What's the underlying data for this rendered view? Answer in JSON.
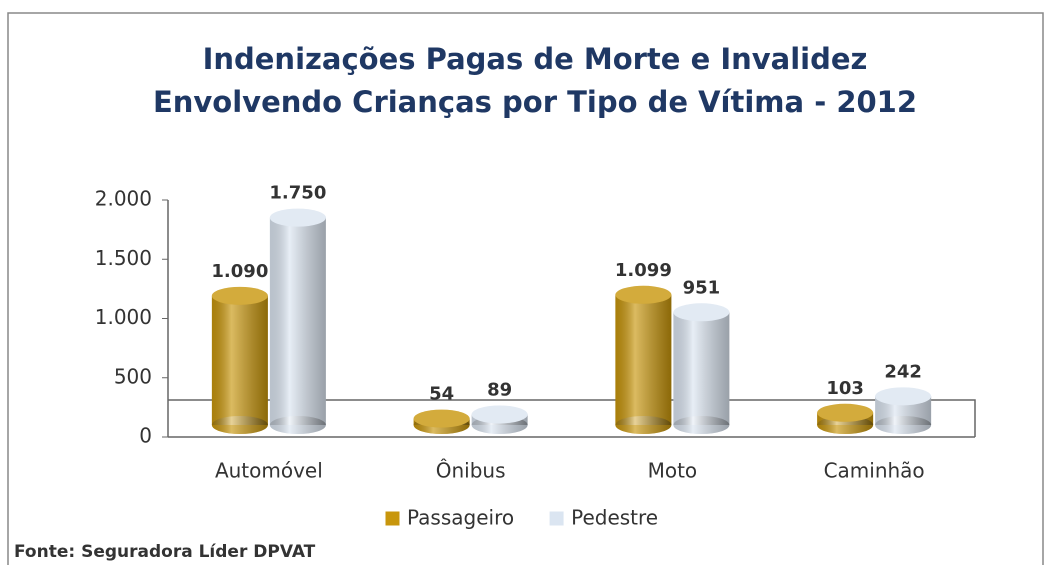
{
  "chart_data": {
    "type": "bar3d",
    "title": "Indenizações Pagas de Morte e Invalidez Envolvendo Crianças por Tipo de Vítima - 2012",
    "categories": [
      "Automóvel",
      "Ônibus",
      "Moto",
      "Caminhão"
    ],
    "series": [
      {
        "name": "Passageiro",
        "color": "#c8960c",
        "label_color": "#b07d0a",
        "values": [
          1090,
          54,
          1099,
          103
        ],
        "value_labels": [
          "1.090",
          "54",
          "1.099",
          "103"
        ]
      },
      {
        "name": "Pedestre",
        "color": "#dbe5f1",
        "label_color": "#1f4e79",
        "values": [
          1750,
          89,
          951,
          242
        ],
        "value_labels": [
          "1.750",
          "89",
          "951",
          "242"
        ]
      }
    ],
    "ylim": [
      0,
      2000
    ],
    "yticks": [
      0,
      500,
      {
        "value": 1000,
        "label": "1.000"
      },
      {
        "value": 1500,
        "label": "1.500"
      },
      {
        "value": 2000,
        "label": "2.000"
      }
    ],
    "legend": "bottom",
    "source": "Fonte: Seguradora Líder DPVAT"
  }
}
